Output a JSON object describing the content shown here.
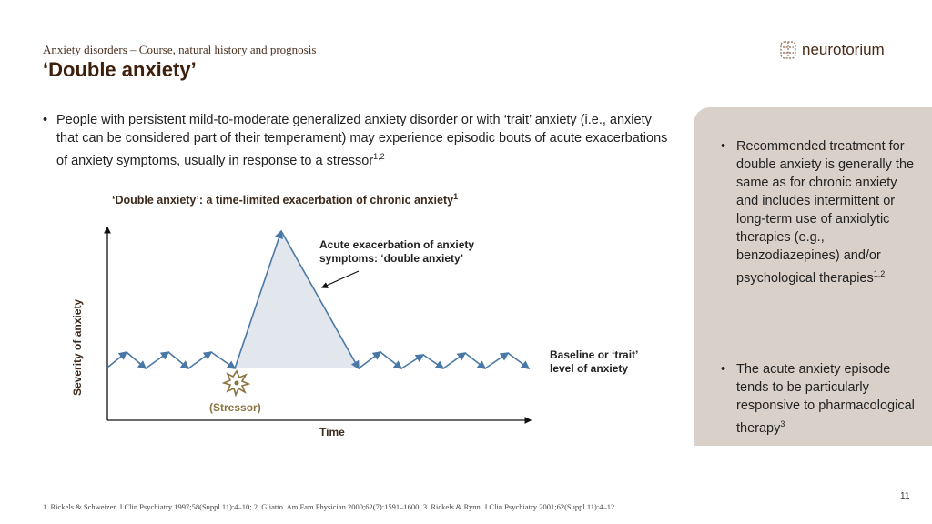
{
  "header": {
    "subtitle": "Anxiety disorders – Course, natural history and prognosis",
    "title": "‘Double anxiety’",
    "logo_text": "neurotorium"
  },
  "bullet": {
    "text": "People with persistent mild-to-moderate generalized anxiety disorder or with ‘trait’ anxiety (i.e., anxiety that can be considered part of their temperament) may experience episodic bouts of acute exacerbations of anxiety symptoms, usually in response to a stressor",
    "sup": "1,2"
  },
  "diagram": {
    "title": "‘Double anxiety’: a time-limited exacerbation of chronic anxiety",
    "title_sup": "1",
    "y_label": "Severity of anxiety",
    "x_label": "Time",
    "peak_label": "Acute exacerbation of anxiety symptoms: ‘double anxiety’",
    "baseline_label": "Baseline or ‘trait’ level of anxiety",
    "stressor_label": "(Stressor)",
    "colors": {
      "line": "#4a78a6",
      "fill": "#e2e7ee",
      "stressor": "#8a7340"
    }
  },
  "panel": {
    "items": [
      {
        "text": "Recommended treatment for double anxiety is generally the same as for chronic anxiety and includes intermittent or long-term use of anxiolytic therapies (e.g., benzodiazepines) and/or psychological therapies",
        "sup": "1,2"
      },
      {
        "text": "The acute anxiety episode tends to be particularly responsive to pharmacological therapy",
        "sup": "3"
      }
    ]
  },
  "footer": {
    "references": "1. Rickels & Schweizer. J Clin Psychiatry 1997;58(Suppl 11):4–10; 2. Gliatto. Am Fam Physician 2000;62(7):1591–1600; 3. Rickels & Rynn. J Clin Psychiatry 2001;62(Suppl 11):4–12",
    "page": "11"
  }
}
